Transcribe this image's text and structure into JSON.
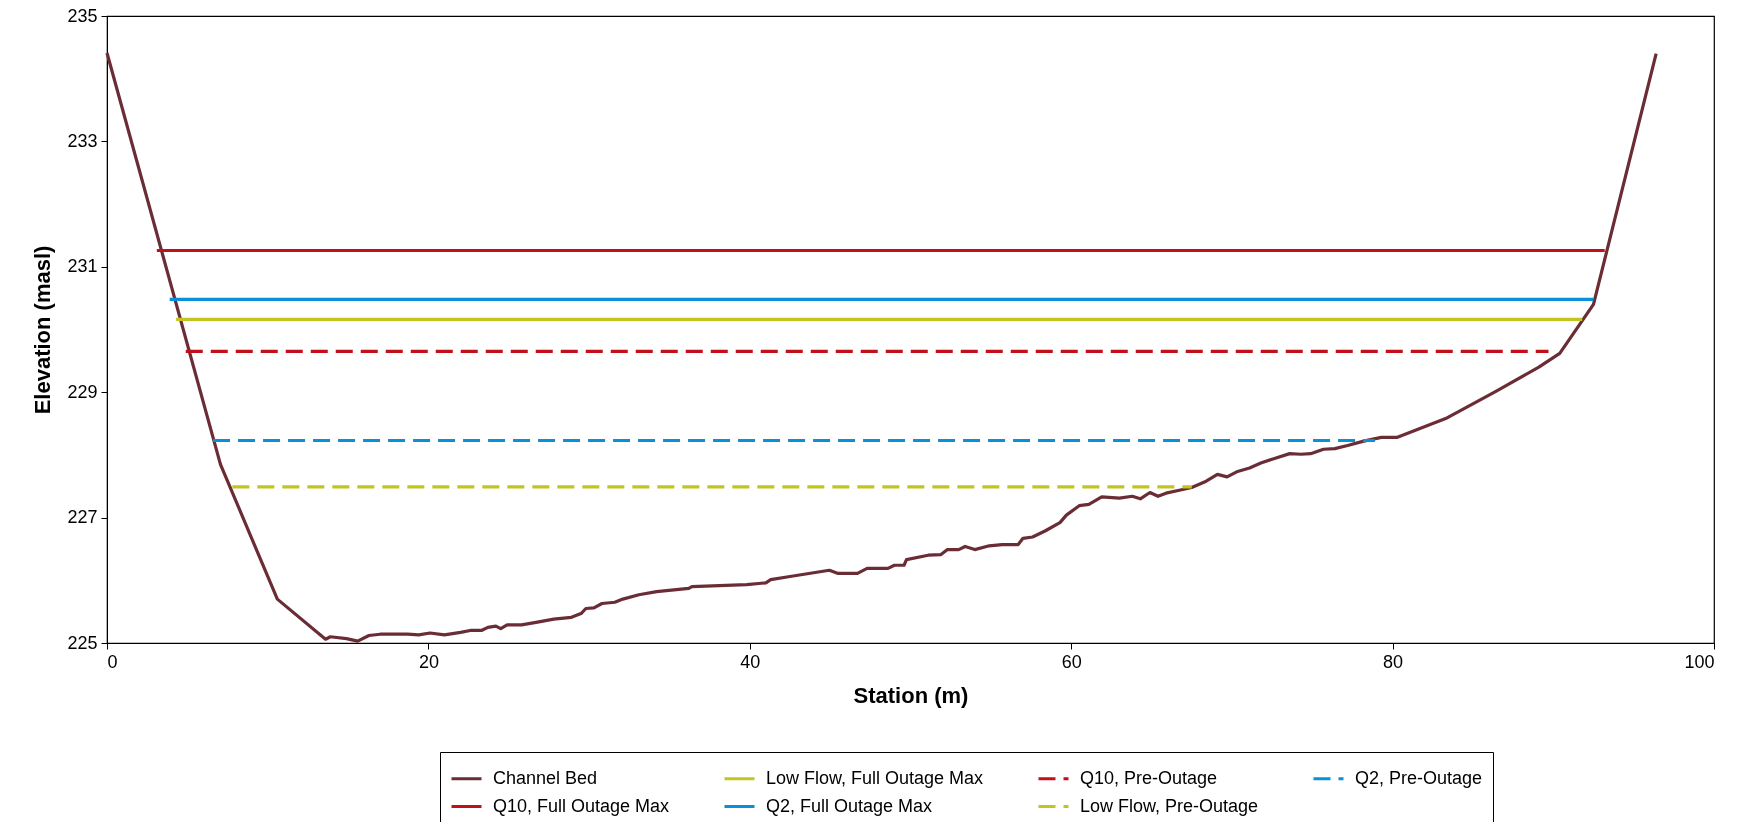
{
  "chart_data": {
    "type": "line",
    "xlabel": "Station (m)",
    "ylabel": "Elevation (masl)",
    "xlim": [
      0,
      100
    ],
    "xticks": [
      0,
      20,
      40,
      60,
      80,
      100
    ],
    "ylim": [
      225,
      235
    ],
    "yticks": [
      225,
      227,
      229,
      231,
      233,
      235
    ],
    "grid": false,
    "legend": "bottom",
    "marker": "none",
    "series": [
      {
        "name": "Channel Bed",
        "color": "#6b2d35",
        "line_style": "solid",
        "x": [
          0,
          7.06,
          10.6,
          13.6,
          13.9,
          14.9,
          15.6,
          16.3,
          17.0,
          18.7,
          19.4,
          20.1,
          21.0,
          22.0,
          22.6,
          23.3,
          23.7,
          24.2,
          24.5,
          24.9,
          25.8,
          26.7,
          27.8,
          28.9,
          29.5,
          29.8,
          30.3,
          30.8,
          31.6,
          32.1,
          33.1,
          34.2,
          36.2,
          36.4,
          39.8,
          41.0,
          41.3,
          42.5,
          44.95,
          45.5,
          46.7,
          47.3,
          48.6,
          49.0,
          49.6,
          49.75,
          51.1,
          51.9,
          52.3,
          53.0,
          53.4,
          54.0,
          54.9,
          55.7,
          56.7,
          57.0,
          57.6,
          58.4,
          59.3,
          59.7,
          60.5,
          61.1,
          61.9,
          63.0,
          63.8,
          64.3,
          64.9,
          65.4,
          65.9,
          66.8,
          67.5,
          68.4,
          69.1,
          69.7,
          70.3,
          71.1,
          71.8,
          72.6,
          73.6,
          74.3,
          74.9,
          75.7,
          76.4,
          77.2,
          78.2,
          79.3,
          80.3,
          83.3,
          86.4,
          89.1,
          90.4,
          92.5,
          96.4
        ],
        "values": [
          234.41,
          227.85,
          225.7,
          225.06,
          225.1,
          225.07,
          225.03,
          225.12,
          225.14,
          225.14,
          225.13,
          225.16,
          225.13,
          225.17,
          225.2,
          225.2,
          225.25,
          225.27,
          225.23,
          225.29,
          225.29,
          225.33,
          225.38,
          225.41,
          225.47,
          225.55,
          225.56,
          225.63,
          225.65,
          225.7,
          225.77,
          225.82,
          225.87,
          225.9,
          225.93,
          225.96,
          226.01,
          226.06,
          226.16,
          226.11,
          226.11,
          226.19,
          226.19,
          226.24,
          226.24,
          226.33,
          226.4,
          226.41,
          226.49,
          226.49,
          226.54,
          226.49,
          226.55,
          226.57,
          226.57,
          226.67,
          226.69,
          226.79,
          226.92,
          227.04,
          227.19,
          227.21,
          227.33,
          227.31,
          227.34,
          227.3,
          227.4,
          227.34,
          227.39,
          227.44,
          227.48,
          227.58,
          227.69,
          227.65,
          227.73,
          227.79,
          227.87,
          227.94,
          228.02,
          228.01,
          228.02,
          228.09,
          228.1,
          228.15,
          228.22,
          228.28,
          228.28,
          228.58,
          229.01,
          229.4,
          229.62,
          230.4,
          234.4
        ]
      },
      {
        "name": "Q10, Full Outage Max",
        "color": "#c0101a",
        "line_style": "solid",
        "x": [
          3.1,
          93.2
        ],
        "values": [
          231.26,
          231.26
        ]
      },
      {
        "name": "Low Flow, Full Outage Max",
        "color": "#c2c520",
        "line_style": "solid",
        "x": [
          4.3,
          91.8
        ],
        "values": [
          230.16,
          230.16
        ]
      },
      {
        "name": "Q2, Full Outage  Max",
        "color": "#0a90d8",
        "line_style": "solid",
        "x": [
          3.9,
          92.5
        ],
        "values": [
          230.48,
          230.48
        ]
      },
      {
        "name": "Q10, Pre-Outage",
        "color": "#c0101a",
        "line_style": "dashed",
        "x": [
          4.9,
          89.7
        ],
        "values": [
          229.65,
          229.65
        ]
      },
      {
        "name": "Low Flow, Pre-Outage",
        "color": "#c2c520",
        "line_style": "dashed",
        "x": [
          7.8,
          67.5
        ],
        "values": [
          227.49,
          227.49
        ]
      },
      {
        "name": "Q2, Pre-Outage",
        "color": "#0a90d8",
        "line_style": "dashed",
        "x": [
          6.6,
          78.9
        ],
        "values": [
          228.23,
          228.23
        ]
      }
    ]
  }
}
